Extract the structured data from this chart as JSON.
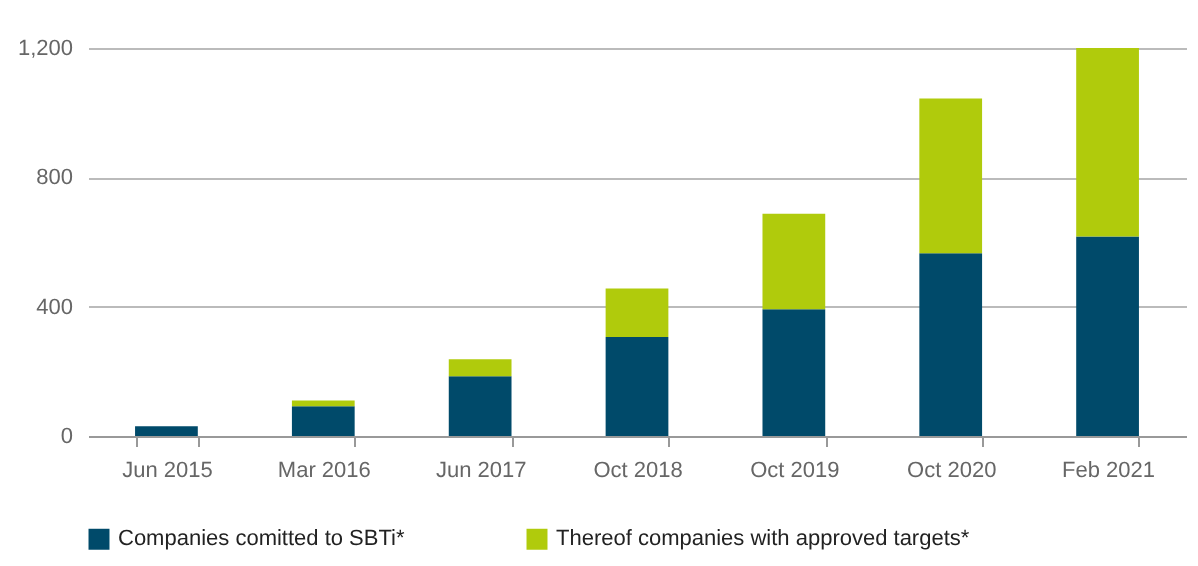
{
  "chart_data": {
    "type": "bar",
    "stacked": true,
    "categories": [
      "Jun 2015",
      "Mar 2016",
      "Jun 2017",
      "Oct 2018",
      "Oct 2019",
      "Oct 2020",
      "Feb 2021"
    ],
    "series": [
      {
        "name": "Companies comitted to SBTi*",
        "color": "#004a6a",
        "values": [
          30,
          92,
          185,
          306,
          392,
          565,
          617
        ]
      },
      {
        "name": "Thereof companies with approved targets*",
        "color": "#b0cb0c",
        "values": [
          0,
          18,
          52,
          150,
          295,
          479,
          583
        ]
      }
    ],
    "ylim": [
      0,
      1200
    ],
    "yticks": [
      0,
      {
        "value": 400,
        "label": "400"
      },
      {
        "value": 800,
        "label": "800"
      },
      {
        "value": 1200,
        "label": "1,200"
      }
    ],
    "grid": "y",
    "legend": "bottom left"
  }
}
